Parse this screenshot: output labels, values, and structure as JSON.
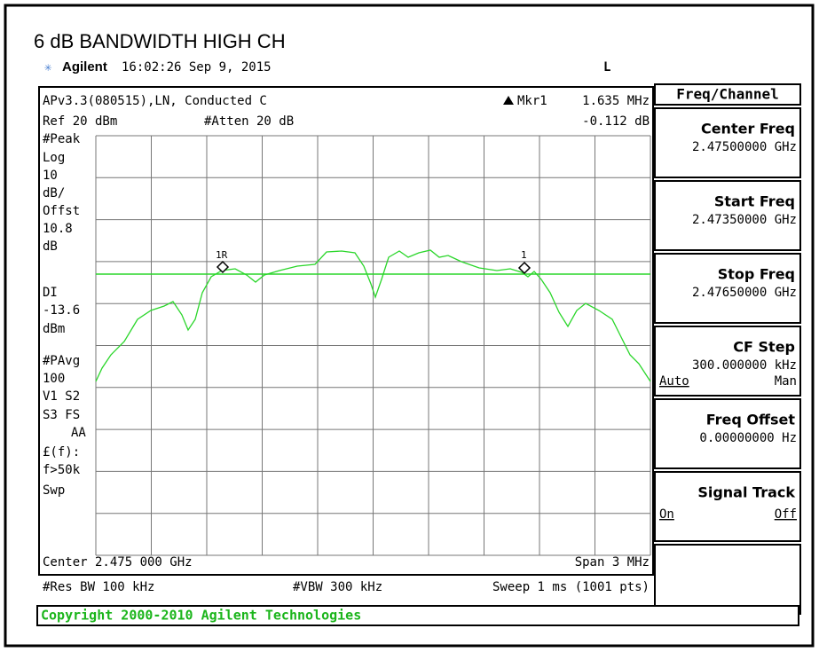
{
  "header": {
    "title": "6 dB BANDWIDTH HIGH CH",
    "brand": "Agilent",
    "timestamp": "16:02:26  Sep 9, 2015",
    "mode": "L"
  },
  "display": {
    "top_left": "APv3.3(080515),LN, Conducted C",
    "marker": "Mkr1",
    "marker_freq": "1.635 MHz",
    "marker_level": "-0.112 dB",
    "ref": "Ref 20 dBm",
    "atten": "#Atten 20 dB",
    "left_labels": [
      "#Peak",
      "Log",
      "10",
      "dB/",
      "Offst",
      "10.8",
      "dB",
      "DI",
      "-13.6",
      "dBm",
      "#PAvg",
      "100",
      "V1  S2",
      "S3  FS",
      "AA",
      "£(f):",
      "f>50k",
      "Swp"
    ],
    "marker_labels": [
      "1R",
      "1"
    ],
    "center": "Center 2.475 000 GHz",
    "span": "Span 3 MHz",
    "res_bw": "#Res BW 100 kHz",
    "vbw": "#VBW 300 kHz",
    "sweep": "Sweep 1 ms (1001 pts)"
  },
  "softkeys": {
    "title": "Freq/Channel",
    "buttons": [
      {
        "label": "Center Freq",
        "value": "2.47500000 GHz"
      },
      {
        "label": "Start Freq",
        "value": "2.47350000 GHz"
      },
      {
        "label": "Stop Freq",
        "value": "2.47650000 GHz"
      },
      {
        "label": "CF Step",
        "value": "300.000000 kHz",
        "options": [
          "Auto",
          "Man"
        ]
      },
      {
        "label": "Freq Offset",
        "value": "0.00000000  Hz"
      },
      {
        "label": "Signal Track",
        "options": [
          "On",
          "Off"
        ]
      }
    ]
  },
  "footer": {
    "copyright": "Copyright 2000-2010 Agilent Technologies"
  }
}
